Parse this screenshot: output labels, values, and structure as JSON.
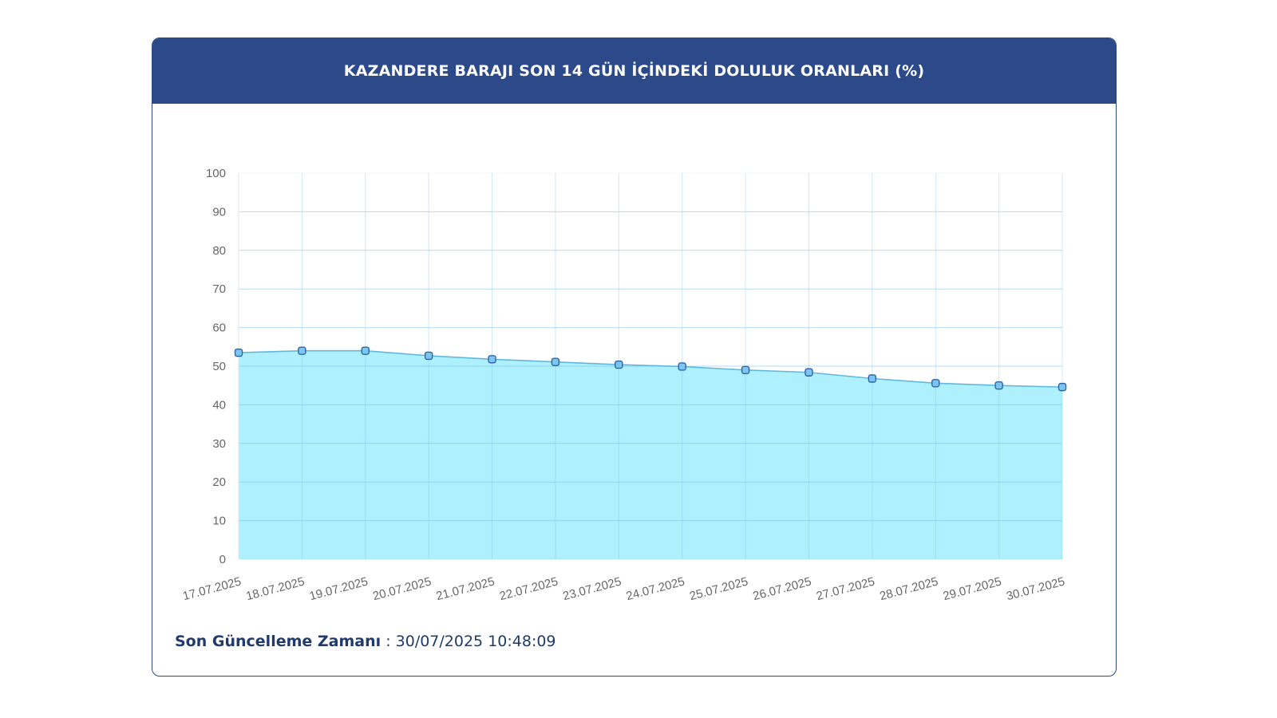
{
  "header": {
    "title": "KAZANDERE BARAJI SON 14 GÜN İÇİNDEKİ DOLULUK ORANLARI (%)"
  },
  "footer": {
    "label": "Son Güncelleme Zamanı",
    "separator": " : ",
    "value": "30/07/2025 10:48:09"
  },
  "colors": {
    "header_bg": "#2c4a8a",
    "area_fill": "#aef0fd",
    "line": "#5fb8e0",
    "point_fill": "#7cc7f0",
    "point_stroke": "#2e62a8"
  },
  "chart_data": {
    "type": "area",
    "categories": [
      "17.07.2025",
      "18.07.2025",
      "19.07.2025",
      "20.07.2025",
      "21.07.2025",
      "22.07.2025",
      "23.07.2025",
      "24.07.2025",
      "25.07.2025",
      "26.07.2025",
      "27.07.2025",
      "28.07.2025",
      "29.07.2025",
      "30.07.2025"
    ],
    "values": [
      53.5,
      54,
      54,
      52.7,
      51.8,
      51.1,
      50.4,
      49.9,
      49,
      48.4,
      46.8,
      45.6,
      45,
      44.6
    ],
    "ylim": [
      0,
      100
    ],
    "yticks": [
      0,
      10,
      20,
      30,
      40,
      50,
      60,
      70,
      80,
      90,
      100
    ],
    "grid": true,
    "title": "",
    "xlabel": "",
    "ylabel": ""
  }
}
